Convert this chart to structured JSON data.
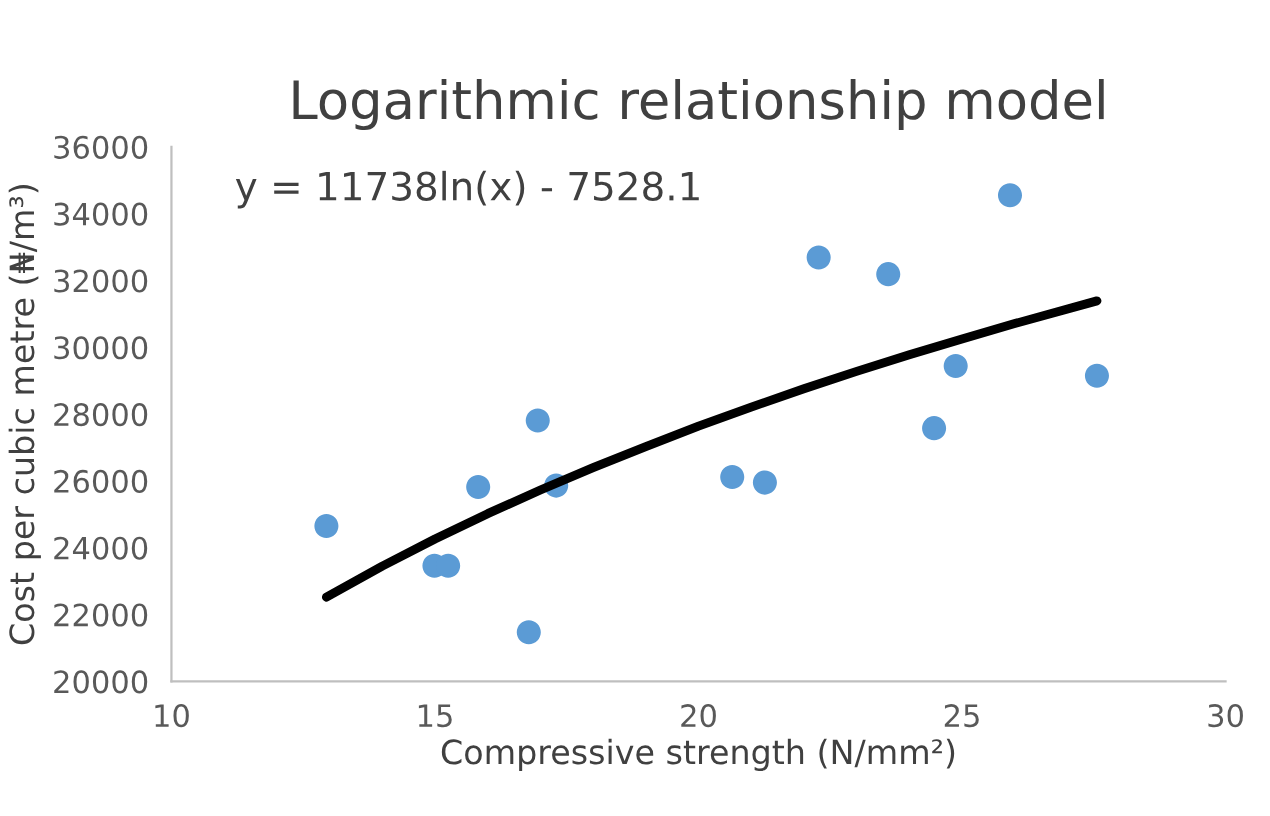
{
  "chart_data": {
    "type": "scatter",
    "title": "Logarithmic relationship model",
    "xlabel": "Compressive strength (N/mm²)",
    "ylabel": "Cost per cubic metre (₦/m³)",
    "annotations": [
      "y = 11738ln(x) - 7528.1"
    ],
    "series": [
      {
        "color": "#5b9bd5",
        "marker": "circle",
        "x": [
          12.94,
          14.99,
          15.25,
          15.82,
          16.95,
          16.78,
          17.3,
          20.64,
          21.26,
          22.28,
          23.6,
          24.47,
          24.88,
          25.91,
          27.56
        ],
        "values": [
          24650,
          23460,
          23460,
          25820,
          27810,
          21470,
          25860,
          26120,
          25950,
          32690,
          32190,
          27580,
          29440,
          34550,
          29150
        ]
      },
      {
        "type": "line",
        "color": "#000000",
        "line_style": "solid",
        "marker": "none",
        "x": [
          12.94,
          14,
          15,
          16,
          17,
          18,
          19,
          20,
          21,
          22,
          23,
          24,
          25,
          26,
          27.56
        ],
        "values": [
          22520,
          23450,
          24260,
          25020,
          25730,
          26400,
          27030,
          27640,
          28210,
          28760,
          29280,
          29780,
          30250,
          30710,
          31390
        ]
      }
    ],
    "xlim": [
      10,
      30
    ],
    "xticks": [
      10,
      15,
      20,
      25,
      30
    ],
    "ylim": [
      20000,
      36000
    ],
    "yticks": [
      20000,
      22000,
      24000,
      26000,
      28000,
      30000,
      32000,
      34000,
      36000
    ],
    "grid": false,
    "legend": false
  }
}
